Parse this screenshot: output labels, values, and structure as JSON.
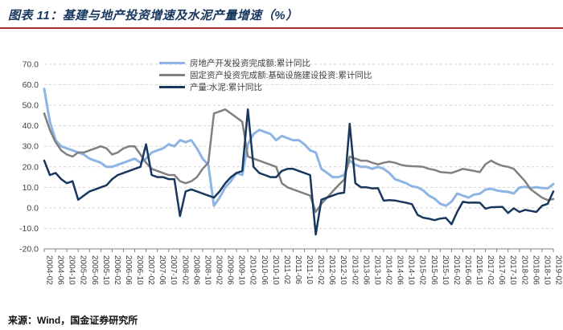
{
  "header": {
    "title": "图表 11：基建与地产投资增速及水泥产量增速（%）"
  },
  "footer": {
    "source": "来源：Wind，国金证券研究所"
  },
  "colors": {
    "title_text": "#17375E",
    "rule": "#A02C2C",
    "axis_text": "#404040",
    "gridline": "#D3D3D3",
    "axis_line": "#7F7F7F"
  },
  "chart_data": {
    "type": "line",
    "title": "",
    "xlabel": "",
    "ylabel": "",
    "ylim": [
      -20,
      70
    ],
    "y_tick_labels": [
      "70.0",
      "60.0",
      "50.0",
      "40.0",
      "30.0",
      "20.0",
      "10.0",
      "0.0",
      "-10.0",
      "-20.0"
    ],
    "grid": "horizontal-dashed",
    "legend_position": "inside-top-left",
    "x_ticks_every_n_points": 2,
    "x_tick_labels": [
      "2004-02",
      "2004-06",
      "2004-10",
      "2005-02",
      "2005-06",
      "2005-10",
      "2006-02",
      "2006-06",
      "2006-10",
      "2007-02",
      "2007-06",
      "2007-10",
      "2008-02",
      "2008-06",
      "2008-10",
      "2009-02",
      "2009-06",
      "2009-10",
      "2010-02",
      "2010-06",
      "2010-10",
      "2011-02",
      "2011-06",
      "2011-10",
      "2012-02",
      "2012-06",
      "2012-10",
      "2013-02",
      "2013-06",
      "2013-10",
      "2014-02",
      "2014-06",
      "2014-10",
      "2015-02",
      "2015-06",
      "2015-10",
      "2016-02",
      "2016-06",
      "2016-10",
      "2017-02",
      "2017-06",
      "2017-10",
      "2018-02",
      "2018-06",
      "2018-10",
      "2019-02"
    ],
    "series": [
      {
        "name": "房地产开发投资完成额:累计同比",
        "color": "#8EB4E3",
        "width": 3,
        "values": [
          58,
          42,
          33,
          30,
          29,
          28,
          27,
          26,
          24,
          23,
          22,
          20,
          20,
          21,
          22,
          23,
          24,
          22,
          24,
          27,
          28,
          29,
          31,
          30,
          33,
          32,
          33,
          29,
          24,
          21,
          1,
          5,
          10,
          13,
          17,
          16,
          31,
          36,
          38,
          37,
          36,
          33,
          35,
          34,
          33,
          33,
          31,
          28,
          27,
          19,
          17,
          15,
          15,
          16,
          23,
          21,
          20,
          20,
          19,
          20,
          19,
          17,
          14,
          13,
          12,
          10.5,
          10,
          8.5,
          6,
          4.5,
          2,
          1,
          3,
          7,
          6,
          5,
          6.5,
          6.9,
          8.9,
          9.3,
          8.5,
          8,
          7.8,
          7,
          9.9,
          10.3,
          9.7,
          10.1,
          9.7,
          9.5,
          11.6
        ]
      },
      {
        "name": "固定资产投资完成额:基础设施建设投资:累计同比",
        "color": "#808080",
        "width": 2.5,
        "values": [
          46,
          38,
          32,
          28,
          26,
          25,
          27,
          27,
          28,
          29,
          30,
          29,
          26,
          27,
          29,
          30,
          30,
          26,
          22,
          19,
          18,
          17,
          16,
          16,
          13,
          12,
          13,
          15,
          19,
          22,
          46,
          47,
          48,
          46,
          44,
          42,
          25,
          24,
          23,
          22,
          21,
          20,
          12,
          10,
          9,
          8,
          7,
          6,
          -2,
          2,
          5,
          8,
          11,
          13.7,
          25,
          24,
          23,
          23,
          22,
          21.2,
          22,
          22.5,
          22,
          21,
          20.5,
          20.3,
          20.2,
          20,
          19,
          18.5,
          17.5,
          17.2,
          17,
          18,
          19,
          18.5,
          18,
          17.4,
          21.3,
          23,
          21.5,
          20.5,
          20,
          19,
          16,
          13,
          9,
          7,
          5,
          3.8,
          4.3
        ]
      },
      {
        "name": "产量:水泥:累计同比",
        "color": "#17375E",
        "width": 2.5,
        "values": [
          23,
          16,
          17,
          14,
          12,
          13,
          4,
          6,
          8,
          9,
          10,
          11,
          14,
          16,
          17,
          18,
          19,
          20,
          31,
          16,
          15,
          15,
          14,
          14,
          -4,
          8,
          9,
          8,
          7,
          6,
          5,
          8,
          12,
          15,
          17,
          18,
          48,
          20,
          17,
          16,
          15,
          15,
          18,
          19,
          19,
          18,
          17,
          16,
          -13,
          4,
          5,
          6,
          7,
          7.4,
          41,
          12,
          10,
          10,
          9.5,
          9.6,
          3.5,
          3.8,
          3.6,
          3,
          2.5,
          1.8,
          -3.4,
          -4.8,
          -5.3,
          -6,
          -5.2,
          -4.9,
          -8,
          -2,
          3,
          2.5,
          2.6,
          2.5,
          -0.4,
          0.3,
          0.4,
          0.5,
          -2.5,
          -0.2,
          -2,
          -1,
          -1.5,
          -2,
          1,
          2,
          8
        ]
      }
    ]
  }
}
